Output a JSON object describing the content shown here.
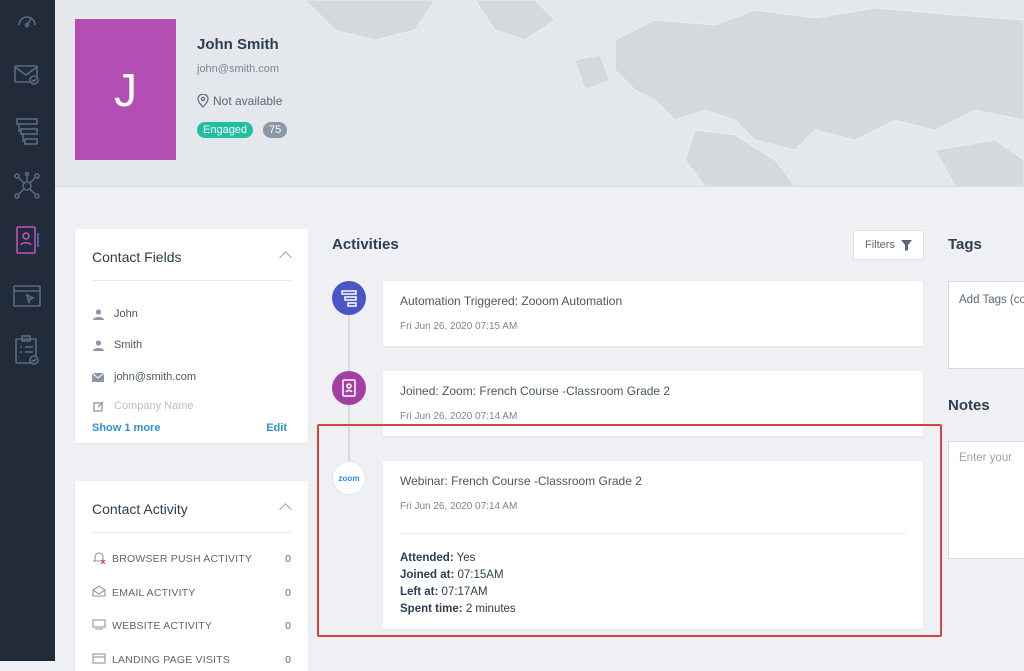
{
  "sidebar": {
    "icons": [
      "dashboard-icon",
      "email-icon",
      "automation-icon",
      "network-icon",
      "contacts-icon",
      "landing-page-icon",
      "forms-icon"
    ],
    "active": "contacts-icon",
    "colors": {
      "bg": "#222b3a",
      "icon": "#5b6b82",
      "active": "#c04fbf"
    }
  },
  "profile": {
    "initial": "J",
    "name": "John Smith",
    "email": "john@smith.com",
    "location": "Not available",
    "status_badge": "Engaged",
    "score": "75",
    "avatar_color": "#b34fb3"
  },
  "contact_fields": {
    "title": "Contact Fields",
    "first_name": "John",
    "last_name": "Smith",
    "email": "john@smith.com",
    "company_placeholder": "Company Name",
    "show_more": "Show 1 more",
    "edit": "Edit"
  },
  "contact_activity": {
    "title": "Contact Activity",
    "items": [
      {
        "label": "BROWSER PUSH ACTIVITY",
        "count": "0"
      },
      {
        "label": "EMAIL ACTIVITY",
        "count": "0"
      },
      {
        "label": "WEBSITE ACTIVITY",
        "count": "0"
      },
      {
        "label": "LANDING PAGE VISITS",
        "count": "0"
      }
    ]
  },
  "activities": {
    "title": "Activities",
    "filters_label": "Filters",
    "items": [
      {
        "title": "Automation Triggered: Zooom Automation",
        "date": "Fri Jun 26, 2020 07:15 AM"
      },
      {
        "title": "Joined: Zoom: French Course -Classroom Grade 2",
        "date": "Fri Jun 26, 2020 07:14 AM"
      },
      {
        "title": "Webinar: French Course -Classroom Grade 2",
        "date": "Fri Jun 26, 2020 07:14 AM",
        "zoom_logo": "zoom",
        "details": {
          "attended_label": "Attended:",
          "attended": "Yes",
          "joined_label": "Joined at:",
          "joined": "07:15AM",
          "left_label": "Left at:",
          "left": "07:17AM",
          "spent_label": "Spent time:",
          "spent": "2 minutes"
        }
      }
    ]
  },
  "tags": {
    "title": "Tags",
    "placeholder": "Add Tags (co"
  },
  "notes": {
    "title": "Notes",
    "placeholder": "Enter your"
  }
}
